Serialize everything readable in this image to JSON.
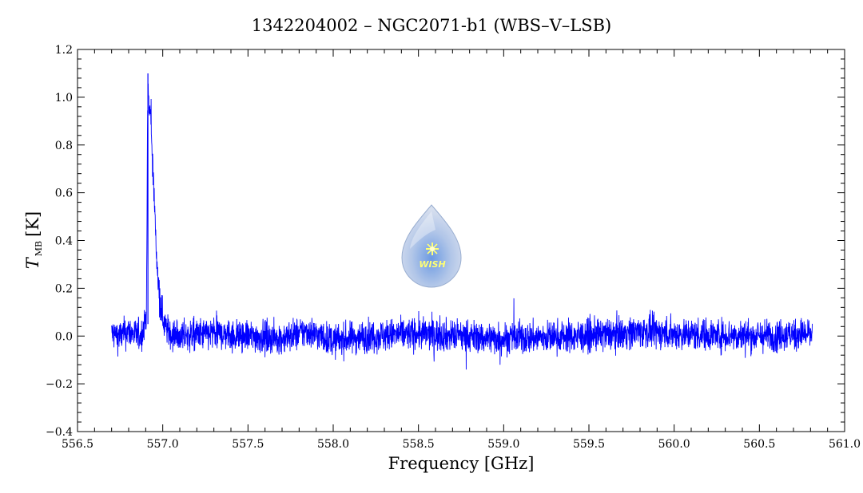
{
  "chart_data": {
    "type": "line",
    "title": "1342204002 – NGC2071-b1 (WBS–V–LSB)",
    "xlabel": "Frequency [GHz]",
    "ylabel": {
      "symbol": "T",
      "subscript": "MB",
      "unit": "[K]"
    },
    "xlim": [
      556.5,
      561.0
    ],
    "ylim": [
      -0.4,
      1.2
    ],
    "xticks": [
      "556.5",
      "557.0",
      "557.5",
      "558.0",
      "558.5",
      "559.0",
      "559.5",
      "560.0",
      "560.5",
      "561.0"
    ],
    "yticks": [
      "−0.4",
      "−0.2",
      "0.0",
      "0.2",
      "0.4",
      "0.6",
      "0.8",
      "1.0",
      "1.2"
    ],
    "grid": false,
    "line_color": "#0000ff",
    "logo": {
      "text": "WISH"
    },
    "series": [
      {
        "x": [
          556.7,
          556.75,
          556.8,
          556.85,
          556.88,
          556.905,
          556.91,
          556.915,
          556.92,
          556.925,
          556.93,
          556.935,
          556.94,
          556.945,
          556.95,
          556.955,
          556.96,
          556.965,
          556.97,
          556.98,
          556.99,
          557.0,
          557.01,
          557.03,
          557.05,
          557.1,
          557.3,
          557.5,
          557.7,
          557.85,
          558.0,
          558.2,
          558.5,
          559.0,
          559.5,
          559.8,
          560.0,
          560.5,
          560.81
        ],
        "y": [
          0.01,
          0.0,
          0.02,
          0.0,
          0.01,
          0.1,
          0.85,
          1.06,
          0.92,
          0.96,
          0.9,
          0.82,
          0.74,
          0.66,
          0.58,
          0.48,
          0.4,
          0.32,
          0.25,
          0.18,
          0.12,
          0.08,
          0.05,
          0.02,
          0.01,
          0.0,
          0.01,
          0.0,
          -0.01,
          0.02,
          -0.02,
          0.0,
          0.01,
          -0.01,
          0.0,
          0.02,
          0.01,
          0.0,
          0.01
        ]
      }
    ]
  }
}
